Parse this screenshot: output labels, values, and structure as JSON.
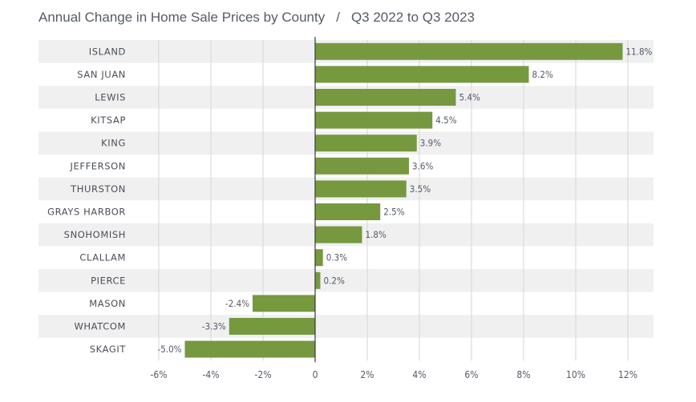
{
  "title": "Annual Change in Home Sale Prices by County",
  "separator": "/",
  "subtitle": "Q3 2022 to Q3 2023",
  "colors": {
    "bar": "#76983f",
    "band": "#f0f0f1",
    "zero_line": "#3a3a3a",
    "grid": "#d6d6d6",
    "text": "#555b66"
  },
  "chart_data": {
    "type": "bar",
    "orientation": "horizontal",
    "title": "Annual Change in Home Sale Prices by County",
    "subtitle": "Q3 2022 to Q3 2023",
    "xlabel": "",
    "ylabel": "",
    "xlim": [
      -6,
      12
    ],
    "x_ticks": [
      -6,
      -4,
      -2,
      0,
      2,
      4,
      6,
      8,
      10,
      12
    ],
    "x_tick_labels": [
      "-6%",
      "-4%",
      "-2%",
      "0",
      "2%",
      "4%",
      "6%",
      "8%",
      "10%",
      "12%"
    ],
    "grid": true,
    "categories": [
      "ISLAND",
      "SAN JUAN",
      "LEWIS",
      "KITSAP",
      "KING",
      "JEFFERSON",
      "THURSTON",
      "GRAYS HARBOR",
      "SNOHOMISH",
      "CLALLAM",
      "PIERCE",
      "MASON",
      "WHATCOM",
      "SKAGIT"
    ],
    "values": [
      11.8,
      8.2,
      5.4,
      4.5,
      3.9,
      3.6,
      3.5,
      2.5,
      1.8,
      0.3,
      0.2,
      -2.4,
      -3.3,
      -5.0
    ],
    "value_labels": [
      "11.8%",
      "8.2%",
      "5.4%",
      "4.5%",
      "3.9%",
      "3.6%",
      "3.5%",
      "2.5%",
      "1.8%",
      "0.3%",
      "0.2%",
      "-2.4%",
      "-3.3%",
      "-5.0%"
    ]
  }
}
